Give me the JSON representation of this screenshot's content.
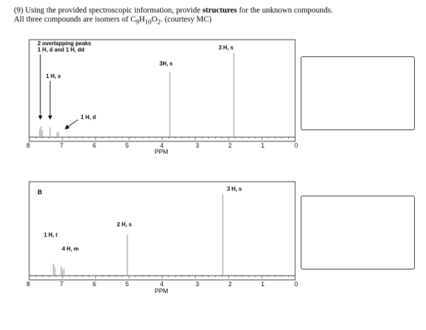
{
  "question": {
    "line1_pre": "(9) Using the provided spectroscopic information, provide ",
    "line1_bold": "structures",
    "line1_post": " for the unknown compounds.",
    "line2_pre": "All three compounds are isomers of C",
    "sub1": "9",
    "mid1": "H",
    "sub2": "10",
    "mid2": "O",
    "sub3": "2",
    "line2_post": ". (courtesy MC)"
  },
  "spectrum_a": {
    "label": "",
    "axis_label": "PPM",
    "ticks": [
      "8",
      "7",
      "6",
      "5",
      "4",
      "3",
      "2",
      "1",
      "0"
    ],
    "annotations": [
      {
        "text": "2 overlapping peaks"
      },
      {
        "text": "1 H, d and 1 H, dd"
      },
      {
        "text": "1 H, s"
      },
      {
        "text": "1 H, d"
      },
      {
        "text": "3H, s"
      },
      {
        "text": "3 H, s"
      }
    ],
    "peaks_ppm": [
      7.35,
      7.3,
      7.1,
      7.0,
      3.85,
      2.25
    ]
  },
  "spectrum_b": {
    "label": "B",
    "axis_label": "PPM",
    "ticks": [
      "8",
      "7",
      "6",
      "5",
      "4",
      "3",
      "2",
      "1",
      "0"
    ],
    "annotations": [
      {
        "text": "1 H, t"
      },
      {
        "text": "4 H, m"
      },
      {
        "text": "2 H, s"
      },
      {
        "text": "3 H, s"
      }
    ],
    "peaks_ppm": [
      7.4,
      7.3,
      5.1,
      2.1
    ]
  },
  "colors": {
    "peak": "#9a9a9a",
    "axis": "#333333",
    "box": "#333333"
  }
}
